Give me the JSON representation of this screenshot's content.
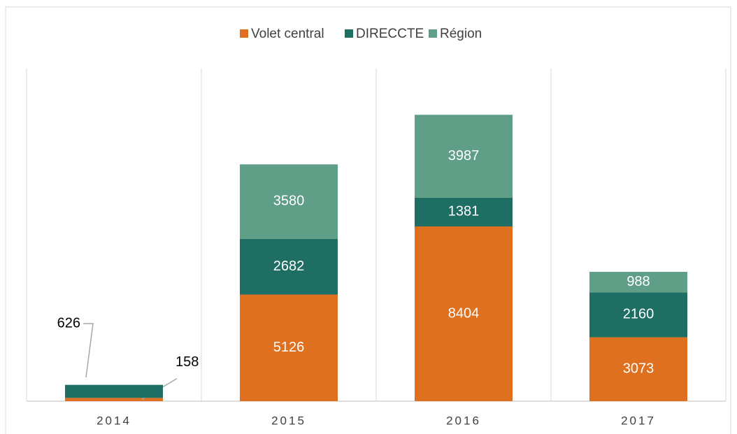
{
  "chart_data": {
    "type": "stacked-bar",
    "categories": [
      "2014",
      "2015",
      "2016",
      "2017"
    ],
    "series": [
      {
        "name": "Volet central",
        "color": "#de7020",
        "values": [
          158,
          5126,
          8404,
          3073
        ]
      },
      {
        "name": "DIRECCTE",
        "color": "#1e6e63",
        "values": [
          626,
          2682,
          1381,
          2160
        ]
      },
      {
        "name": "Région",
        "color": "#5f9e87",
        "values": [
          null,
          3580,
          3987,
          988
        ]
      }
    ],
    "ylim": [
      0,
      16000
    ],
    "legend": "top"
  }
}
